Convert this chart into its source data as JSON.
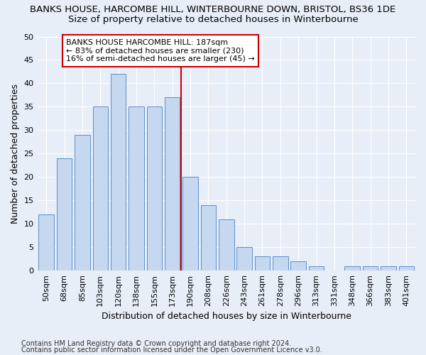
{
  "title": "BANKS HOUSE, HARCOMBE HILL, WINTERBOURNE DOWN, BRISTOL, BS36 1DE",
  "subtitle": "Size of property relative to detached houses in Winterbourne",
  "xlabel": "Distribution of detached houses by size in Winterbourne",
  "ylabel": "Number of detached properties",
  "footnote1": "Contains HM Land Registry data © Crown copyright and database right 2024.",
  "footnote2": "Contains public sector information licensed under the Open Government Licence v3.0.",
  "categories": [
    "50sqm",
    "68sqm",
    "85sqm",
    "103sqm",
    "120sqm",
    "138sqm",
    "155sqm",
    "173sqm",
    "190sqm",
    "208sqm",
    "226sqm",
    "243sqm",
    "261sqm",
    "278sqm",
    "296sqm",
    "313sqm",
    "331sqm",
    "348sqm",
    "366sqm",
    "383sqm",
    "401sqm"
  ],
  "values": [
    12,
    24,
    29,
    35,
    42,
    35,
    35,
    37,
    20,
    14,
    11,
    5,
    3,
    3,
    2,
    1,
    0,
    1,
    1,
    1,
    1
  ],
  "bar_color": "#c5d8f0",
  "bar_edge_color": "#5b8dc8",
  "vline_color": "#cc0000",
  "annotation_text": "BANKS HOUSE HARCOMBE HILL: 187sqm\n← 83% of detached houses are smaller (230)\n16% of semi-detached houses are larger (45) →",
  "annotation_box_color": "#cc0000",
  "ylim": [
    0,
    50
  ],
  "yticks": [
    0,
    5,
    10,
    15,
    20,
    25,
    30,
    35,
    40,
    45,
    50
  ],
  "background_color": "#e8eef8",
  "grid_color": "#ffffff",
  "title_fontsize": 9.5,
  "subtitle_fontsize": 9.5,
  "axis_label_fontsize": 9,
  "tick_fontsize": 8,
  "annotation_fontsize": 8
}
